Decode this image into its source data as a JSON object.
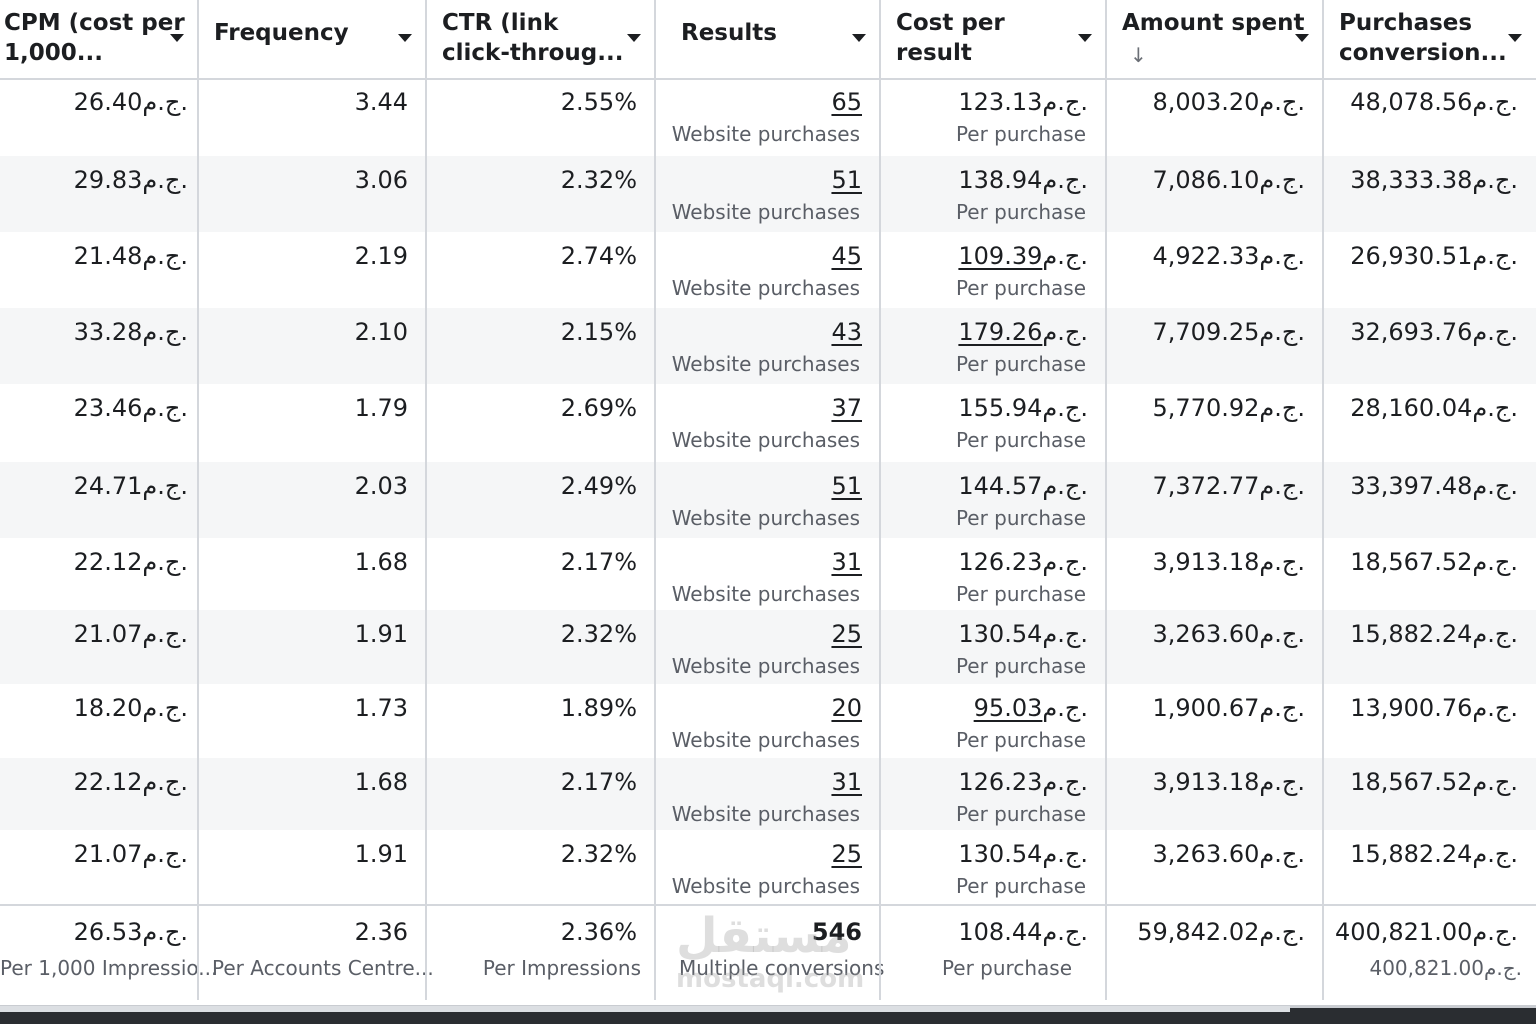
{
  "currency": "ج.م.",
  "columns": [
    {
      "id": "cpm",
      "line1": "CPM (cost per",
      "line2": "1,000..."
    },
    {
      "id": "frequency",
      "line1": "Frequency",
      "line2": ""
    },
    {
      "id": "ctr",
      "line1": "CTR (link",
      "line2": "click-throug..."
    },
    {
      "id": "results",
      "line1": "Results",
      "line2": ""
    },
    {
      "id": "cost_per_result",
      "line1": "Cost per",
      "line2": "result"
    },
    {
      "id": "amount_spent",
      "line1": "Amount spent",
      "line2": "↓"
    },
    {
      "id": "purchases_conversion",
      "line1": "Purchases",
      "line2": "conversion..."
    }
  ],
  "rows": [
    {
      "cpm": "26.40",
      "frequency": "3.44",
      "ctr": "2.55%",
      "results": "65",
      "results_sub": "Website purchases",
      "cpr": "123.13",
      "cpr_sub": "Per purchase",
      "spent": "8,003.20",
      "pcv": "48,078.56"
    },
    {
      "cpm": "29.83",
      "frequency": "3.06",
      "ctr": "2.32%",
      "results": "51",
      "results_sub": "Website purchases",
      "cpr": "138.94",
      "cpr_sub": "Per purchase",
      "spent": "7,086.10",
      "pcv": "38,333.38"
    },
    {
      "cpm": "21.48",
      "frequency": "2.19",
      "ctr": "2.74%",
      "results": "45",
      "results_sub": "Website purchases",
      "cpr": "109.39",
      "cpr_sub": "Per purchase",
      "spent": "4,922.33",
      "pcv": "26,930.51"
    },
    {
      "cpm": "33.28",
      "frequency": "2.10",
      "ctr": "2.15%",
      "results": "43",
      "results_sub": "Website purchases",
      "cpr": "179.26",
      "cpr_sub": "Per purchase",
      "spent": "7,709.25",
      "pcv": "32,693.76"
    },
    {
      "cpm": "23.46",
      "frequency": "1.79",
      "ctr": "2.69%",
      "results": "37",
      "results_sub": "Website purchases",
      "cpr": "155.94",
      "cpr_sub": "Per purchase",
      "spent": "5,770.92",
      "pcv": "28,160.04"
    },
    {
      "cpm": "24.71",
      "frequency": "2.03",
      "ctr": "2.49%",
      "results": "51",
      "results_sub": "Website purchases",
      "cpr": "144.57",
      "cpr_sub": "Per purchase",
      "spent": "7,372.77",
      "pcv": "33,397.48"
    },
    {
      "cpm": "22.12",
      "frequency": "1.68",
      "ctr": "2.17%",
      "results": "31",
      "results_sub": "Website purchases",
      "cpr": "126.23",
      "cpr_sub": "Per purchase",
      "spent": "3,913.18",
      "pcv": "18,567.52"
    },
    {
      "cpm": "21.07",
      "frequency": "1.91",
      "ctr": "2.32%",
      "results": "25",
      "results_sub": "Website purchases",
      "cpr": "130.54",
      "cpr_sub": "Per purchase",
      "spent": "3,263.60",
      "pcv": "15,882.24"
    },
    {
      "cpm": "18.20",
      "frequency": "1.73",
      "ctr": "1.89%",
      "results": "20",
      "results_sub": "Website purchases",
      "cpr": "95.03",
      "cpr_sub": "Per purchase",
      "spent": "1,900.67",
      "pcv": "13,900.76"
    },
    {
      "cpm": "22.12",
      "frequency": "1.68",
      "ctr": "2.17%",
      "results": "31",
      "results_sub": "Website purchases",
      "cpr": "126.23",
      "cpr_sub": "Per purchase",
      "spent": "3,913.18",
      "pcv": "18,567.52"
    },
    {
      "cpm": "21.07",
      "frequency": "1.91",
      "ctr": "2.32%",
      "results": "25",
      "results_sub": "Website purchases",
      "cpr": "130.54",
      "cpr_sub": "Per purchase",
      "spent": "3,263.60",
      "pcv": "15,882.24"
    }
  ],
  "totals": {
    "cpm": "26.53",
    "cpm_sub": "Per 1,000 Impressio...",
    "frequency": "2.36",
    "frequency_sub": "Per Accounts Centre...",
    "ctr": "2.36%",
    "ctr_sub": "Per Impressions",
    "results": "546",
    "results_sub": "Multiple conversions",
    "cpr": "108.44",
    "cpr_sub": "Per purchase",
    "spent": "59,842.02",
    "pcv": "400,821.00",
    "pcv_sub": "400,821.00"
  },
  "watermark": {
    "arabic": "مستقل",
    "latin": "mostaql.com"
  },
  "colors": {
    "row_alt": "#f5f6f7",
    "border": "#d4d7dc",
    "text": "#1c1e21",
    "subtext": "#5a5e66"
  }
}
